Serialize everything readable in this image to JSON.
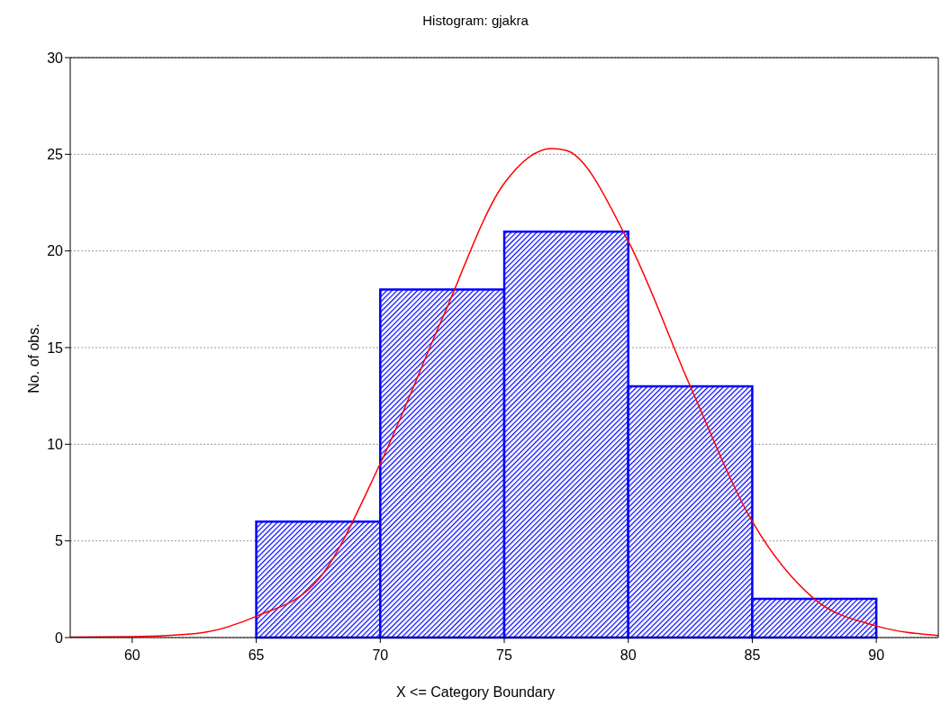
{
  "chart_data": {
    "type": "histogram",
    "title": "Histogram: gjakra",
    "xlabel": "X <= Category Boundary",
    "ylabel": "No. of obs.",
    "bins": [
      65,
      70,
      75,
      80,
      85,
      90
    ],
    "values": [
      6,
      18,
      21,
      13,
      2
    ],
    "color": "#0000ff",
    "series": [
      {
        "type": "line",
        "color": "#ff0000",
        "x": [
          57.5,
          60,
          62.5,
          65,
          67.5,
          70,
          72.5,
          75,
          76.9,
          77.5,
          80,
          82.5,
          85,
          87.5,
          90,
          92.5
        ],
        "values": [
          0.02,
          0.05,
          0.2,
          1.1,
          3,
          9,
          16.5,
          23.5,
          25.3,
          25.2,
          20.5,
          13,
          6,
          2,
          0.6,
          0.1
        ]
      }
    ],
    "xlim": [
      57.5,
      92.5
    ],
    "xticks": [
      60,
      65,
      70,
      75,
      80,
      85,
      90
    ],
    "ylim": [
      0,
      30
    ],
    "yticks": [
      0,
      5,
      10,
      15,
      20,
      25,
      30
    ],
    "grid": "y"
  }
}
